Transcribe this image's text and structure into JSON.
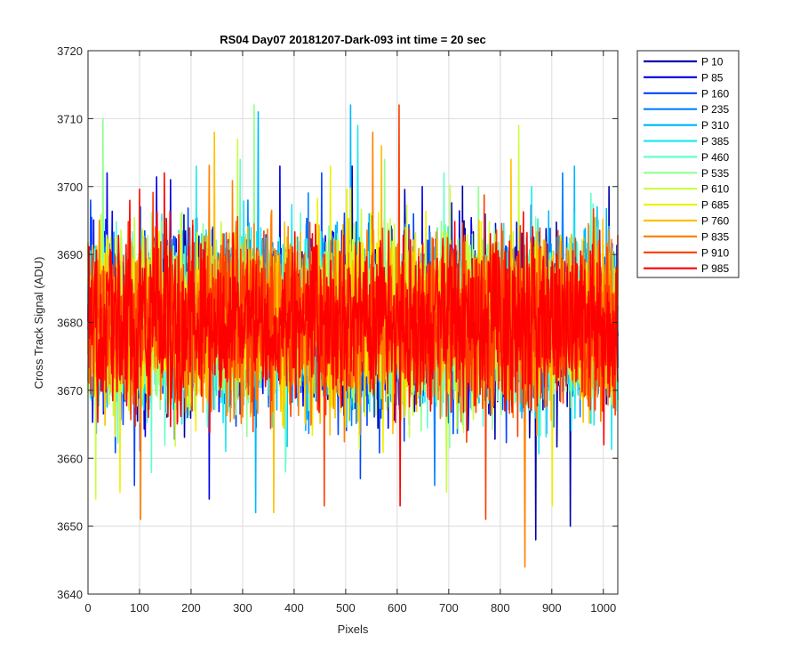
{
  "chart_data": {
    "type": "line",
    "title": "RS04 Day07 20181207-Dark-093 int time = 20 sec",
    "xlabel": "Pixels",
    "ylabel": "Cross Track Signal (ADU)",
    "xlim": [
      0,
      1028
    ],
    "ylim": [
      3640,
      3720
    ],
    "xticks": [
      0,
      100,
      200,
      300,
      400,
      500,
      600,
      700,
      800,
      900,
      1000
    ],
    "yticks": [
      3640,
      3650,
      3660,
      3670,
      3680,
      3690,
      3700,
      3710,
      3720
    ],
    "grid": true,
    "legend_position": "outside-top-right",
    "noise": {
      "points_per_series": 1028,
      "mean": 3680,
      "typical_range": [
        3662,
        3698
      ]
    },
    "series": [
      {
        "name": "P 10",
        "color": "#0000aa",
        "extremes": [
          [
            512,
            3703
          ],
          [
            868,
            3648
          ],
          [
            935,
            3650
          ],
          [
            1010,
            3700
          ]
        ]
      },
      {
        "name": "P 85",
        "color": "#0000e6",
        "extremes": [
          [
            37,
            3702
          ],
          [
            160,
            3701
          ],
          [
            235,
            3654
          ],
          [
            372,
            3703
          ],
          [
            648,
            3700
          ]
        ]
      },
      {
        "name": "P 160",
        "color": "#0044ff",
        "extremes": [
          [
            5,
            3698
          ],
          [
            90,
            3656
          ],
          [
            453,
            3702
          ],
          [
            528,
            3657
          ]
        ]
      },
      {
        "name": "P 235",
        "color": "#0080ff",
        "extremes": [
          [
            102,
            3697
          ],
          [
            310,
            3698
          ],
          [
            672,
            3656
          ],
          [
            920,
            3702
          ]
        ]
      },
      {
        "name": "P 310",
        "color": "#00b8ff",
        "extremes": [
          [
            330,
            3711
          ],
          [
            325,
            3652
          ],
          [
            509,
            3712
          ],
          [
            943,
            3703
          ]
        ]
      },
      {
        "name": "P 385",
        "color": "#20e8f0",
        "extremes": [
          [
            210,
            3703
          ],
          [
            523,
            3709
          ],
          [
            860,
            3700
          ]
        ]
      },
      {
        "name": "P 460",
        "color": "#60ffd0",
        "extremes": [
          [
            295,
            3704
          ],
          [
            383,
            3658
          ],
          [
            690,
            3702
          ],
          [
            975,
            3699
          ]
        ]
      },
      {
        "name": "P 535",
        "color": "#90ff90",
        "extremes": [
          [
            29,
            3710
          ],
          [
            322,
            3712
          ],
          [
            575,
            3704
          ],
          [
            757,
            3700
          ]
        ]
      },
      {
        "name": "P 610",
        "color": "#c8ff40",
        "extremes": [
          [
            15,
            3654
          ],
          [
            290,
            3707
          ],
          [
            695,
            3655
          ],
          [
            835,
            3709
          ]
        ]
      },
      {
        "name": "P 685",
        "color": "#f0f000",
        "extremes": [
          [
            62,
            3655
          ],
          [
            470,
            3703
          ],
          [
            900,
            3653
          ]
        ]
      },
      {
        "name": "P 760",
        "color": "#ffc000",
        "extremes": [
          [
            245,
            3708
          ],
          [
            360,
            3652
          ],
          [
            569,
            3706
          ],
          [
            820,
            3704
          ]
        ]
      },
      {
        "name": "P 835",
        "color": "#ff8000",
        "extremes": [
          [
            102,
            3651
          ],
          [
            552,
            3708
          ],
          [
            847,
            3644
          ]
        ]
      },
      {
        "name": "P 910",
        "color": "#ff3c00",
        "extremes": [
          [
            603,
            3712
          ],
          [
            458,
            3653
          ],
          [
            771,
            3651
          ]
        ]
      },
      {
        "name": "P 985",
        "color": "#ff0000",
        "extremes": [
          [
            148,
            3702
          ],
          [
            605,
            3653
          ],
          [
            1000,
            3662
          ]
        ]
      }
    ]
  }
}
